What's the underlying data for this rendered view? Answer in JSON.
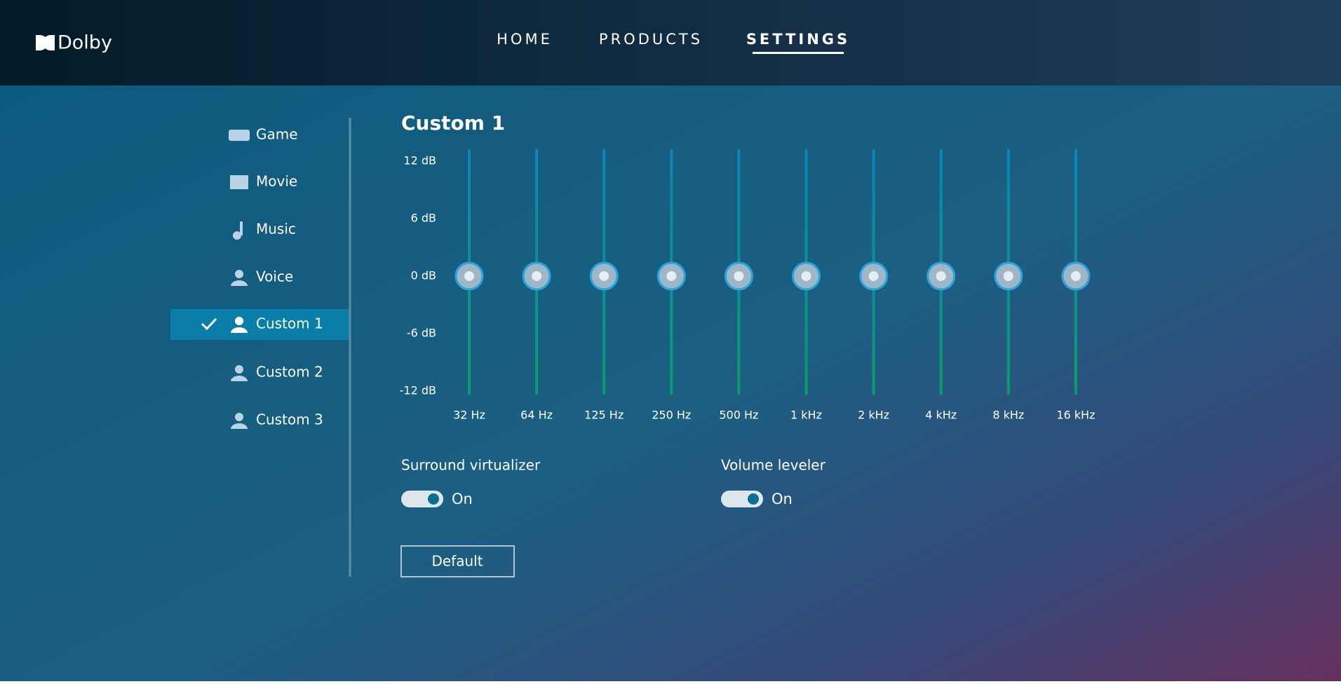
{
  "header": {
    "logo": "Dolby",
    "nav": [
      "HOME",
      "PRODUCTS",
      "SETTINGS"
    ],
    "active_nav": 2
  },
  "sidebar": {
    "items": [
      "Game",
      "Movie",
      "Music",
      "Voice",
      "Custom 1",
      "Custom 2",
      "Custom 3"
    ],
    "selected": 4
  },
  "panel": {
    "title": "Custom 1",
    "equalizer": {
      "ylim": [
        -12,
        12
      ],
      "yticks": [
        {
          "value": 12,
          "label": "12 dB"
        },
        {
          "value": 6,
          "label": "6 dB"
        },
        {
          "value": 0,
          "label": "0 dB"
        },
        {
          "value": -6,
          "label": "-6 dB"
        },
        {
          "value": -12,
          "label": "-12 dB"
        }
      ],
      "bands": [
        "32 Hz",
        "64 Hz",
        "125 Hz",
        "250 Hz",
        "500 Hz",
        "1 kHz",
        "2 kHz",
        "4 kHz",
        "8 kHz",
        "16 kHz"
      ],
      "values": [
        0,
        0,
        0,
        0,
        0,
        0,
        0,
        0,
        0,
        0
      ]
    },
    "toggles": [
      {
        "label": "Surround virtualizer",
        "state": "On"
      },
      {
        "label": "Volume leveler",
        "state": "On"
      }
    ],
    "button": "Default"
  }
}
